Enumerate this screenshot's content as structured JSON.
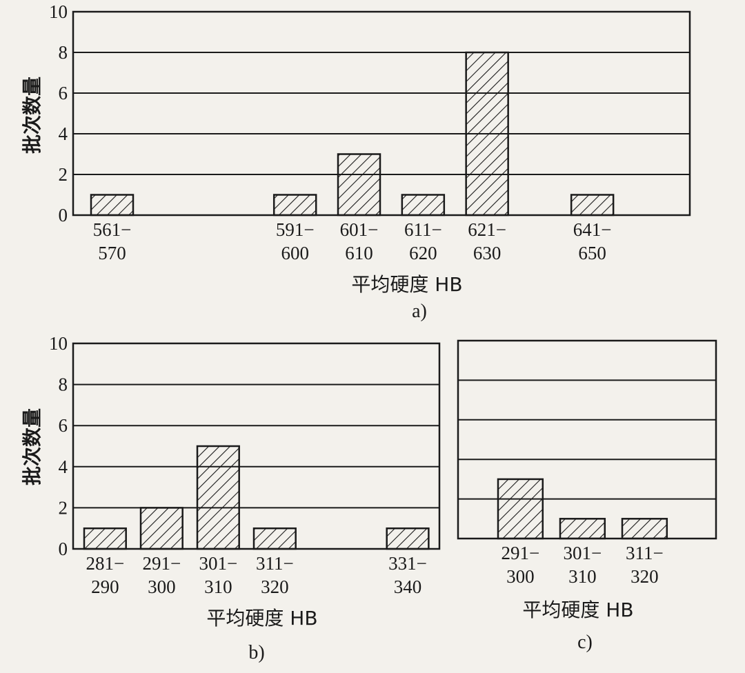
{
  "chart_data": [
    {
      "type": "bar",
      "panel_label": "a)",
      "xlabel": "平均硬度 HB",
      "ylabel": "批次数量",
      "ylim": [
        0,
        10
      ],
      "yticks": [
        "0",
        "2",
        "4",
        "6",
        "8",
        "10"
      ],
      "grid": true,
      "categories": [
        [
          "561−",
          "570"
        ],
        [
          "591−",
          "600"
        ],
        [
          "601−",
          "610"
        ],
        [
          "611−",
          "620"
        ],
        [
          "621−",
          "630"
        ],
        [
          "641−",
          "650"
        ]
      ],
      "values": [
        1,
        1,
        3,
        1,
        8,
        1
      ]
    },
    {
      "type": "bar",
      "panel_label": "b)",
      "xlabel": "平均硬度 HB",
      "ylabel": "批次数量",
      "ylim": [
        0,
        10
      ],
      "yticks": [
        "0",
        "2",
        "4",
        "6",
        "8",
        "10"
      ],
      "grid": true,
      "categories": [
        [
          "281−",
          "290"
        ],
        [
          "291−",
          "300"
        ],
        [
          "301−",
          "310"
        ],
        [
          "311−",
          "320"
        ],
        [
          "331−",
          "340"
        ]
      ],
      "values": [
        1,
        2,
        5,
        1,
        1
      ]
    },
    {
      "type": "bar",
      "panel_label": "c)",
      "xlabel": "平均硬度 HB",
      "ylabel": "",
      "ylim": [
        0,
        10
      ],
      "yticks": [],
      "grid": true,
      "categories": [
        [
          "291−",
          "300"
        ],
        [
          "301−",
          "310"
        ],
        [
          "311−",
          "320"
        ]
      ],
      "values": [
        3,
        1,
        1
      ]
    }
  ]
}
